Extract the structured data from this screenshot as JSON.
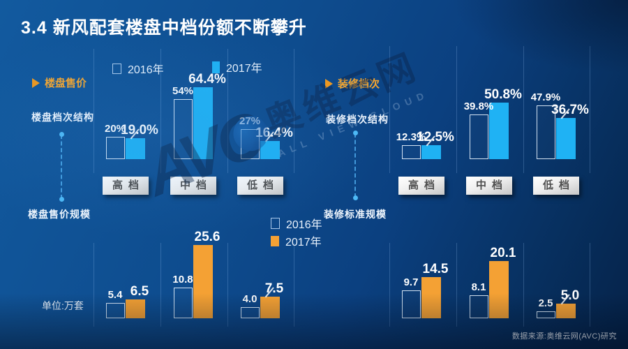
{
  "title": "3.4  新风配套楼盘中档份额不断攀升",
  "legend_top": {
    "y2016": "2016年",
    "y2017": "2017年"
  },
  "legend_mid": {
    "y2016": "2016年",
    "y2017": "2017年"
  },
  "left_panel": {
    "arrow_label": "楼盘售价",
    "structure_label": "楼盘档次结构",
    "scale_label": "楼盘售价规模",
    "unit_label": "单位:万套"
  },
  "right_panel": {
    "arrow_label": "装修档次",
    "structure_label": "装修档次结构",
    "scale_label": "装修标准规模"
  },
  "source_note": "数据来源:奥维云网(AVC)研究",
  "watermark": {
    "logo": "AVC",
    "cjk": "奥维云网",
    "latin": "ALL VIEW CLOUD"
  },
  "colors": {
    "background": "#0d4a8c",
    "blue_2017": "#1fb2f4",
    "orange_2017": "#f4a134",
    "accent_orange": "#f6a62e"
  },
  "chart_data": [
    {
      "id": "price-structure",
      "type": "bar",
      "title": "楼盘档次结构",
      "categories": [
        "高档",
        "中档",
        "低档"
      ],
      "unit": "%",
      "ylim": [
        0,
        70
      ],
      "legend_position": "top",
      "grid": "column-separators",
      "series": [
        {
          "name": "2016年",
          "values": [
            20,
            54,
            27
          ],
          "labels": [
            "20%",
            "54%",
            "27%"
          ]
        },
        {
          "name": "2017年",
          "values": [
            19.0,
            64.4,
            16.4
          ],
          "labels": [
            "19.0%",
            "64.4%",
            "16.4%"
          ]
        }
      ],
      "leaders": [
        true,
        false,
        true
      ]
    },
    {
      "id": "deco-structure",
      "type": "bar",
      "title": "装修档次结构",
      "categories": [
        "高档",
        "中档",
        "低档"
      ],
      "unit": "%",
      "ylim": [
        0,
        70
      ],
      "legend_position": "none",
      "grid": "column-separators",
      "series": [
        {
          "name": "2016年",
          "values": [
            12.3,
            39.8,
            47.9
          ],
          "labels": [
            "12.3%",
            "39.8%",
            "47.9%"
          ]
        },
        {
          "name": "2017年",
          "values": [
            12.5,
            50.8,
            36.7
          ],
          "labels": [
            "12.5%",
            "50.8%",
            "36.7%"
          ]
        }
      ],
      "leaders": [
        true,
        false,
        true
      ]
    },
    {
      "id": "price-scale",
      "type": "bar",
      "title": "楼盘售价规模",
      "categories": [
        "高档",
        "中档",
        "低档"
      ],
      "unit": "万套",
      "ylim": [
        0,
        28
      ],
      "legend_position": "mid",
      "grid": "column-separators",
      "series": [
        {
          "name": "2016年",
          "values": [
            5.4,
            10.8,
            4.0
          ],
          "labels": [
            "5.4",
            "10.8",
            "4.0"
          ]
        },
        {
          "name": "2017年",
          "values": [
            6.5,
            25.6,
            7.5
          ],
          "labels": [
            "6.5",
            "25.6",
            "7.5"
          ]
        }
      ],
      "leaders": [
        false,
        false,
        true
      ]
    },
    {
      "id": "deco-scale",
      "type": "bar",
      "title": "装修标准规模",
      "categories": [
        "高档",
        "中档",
        "低档"
      ],
      "unit": "万套",
      "ylim": [
        0,
        28
      ],
      "legend_position": "none",
      "grid": "column-separators",
      "series": [
        {
          "name": "2016年",
          "values": [
            9.7,
            8.1,
            2.5
          ],
          "labels": [
            "9.7",
            "8.1",
            "2.5"
          ]
        },
        {
          "name": "2017年",
          "values": [
            14.5,
            20.1,
            5.0
          ],
          "labels": [
            "14.5",
            "20.1",
            "5.0"
          ]
        }
      ],
      "leaders": [
        false,
        false,
        true
      ]
    }
  ]
}
